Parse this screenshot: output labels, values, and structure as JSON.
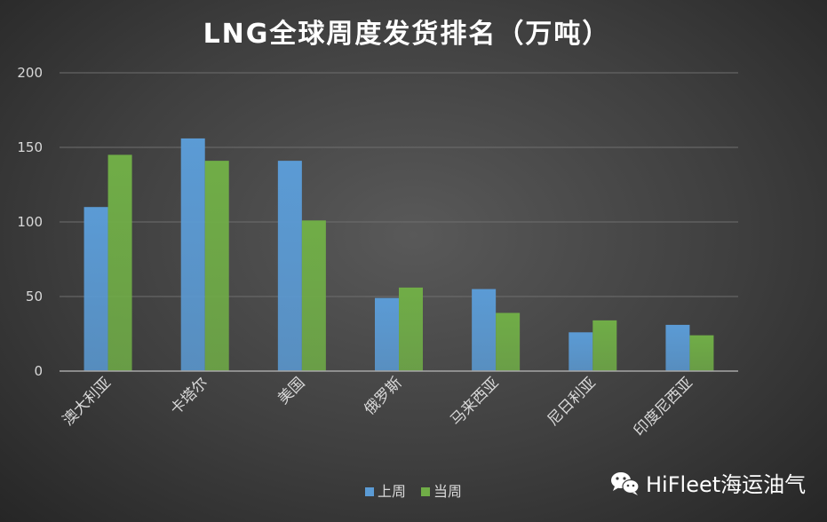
{
  "chart_data": {
    "type": "bar",
    "title": "LNG全球周度发货排名（万吨）",
    "categories": [
      "澳大利亚",
      "卡塔尔",
      "美国",
      "俄罗斯",
      "马来西亚",
      "尼日利亚",
      "印度尼西亚"
    ],
    "series": [
      {
        "name": "上周",
        "color": "#5b9bd5",
        "values": [
          110,
          156,
          141,
          49,
          55,
          26,
          31
        ]
      },
      {
        "name": "当周",
        "color": "#70ad47",
        "values": [
          145,
          141,
          101,
          56,
          39,
          34,
          24
        ]
      }
    ],
    "yticks": [
      0,
      50,
      100,
      150,
      200
    ],
    "ylim": [
      0,
      200
    ],
    "grid": true,
    "legend_position": "bottom"
  },
  "watermark": {
    "text": "HiFleet海运油气",
    "icon": "wechat-icon"
  }
}
